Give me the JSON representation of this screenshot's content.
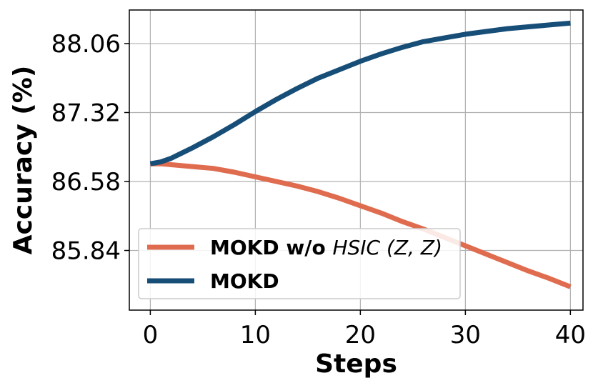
{
  "chart_data": {
    "type": "line",
    "xlabel": "Steps",
    "ylabel": "Accuracy (%)",
    "xlim": [
      -2,
      41.2
    ],
    "ylim": [
      85.2,
      88.42
    ],
    "xticks": [
      0,
      10,
      20,
      30,
      40
    ],
    "yticks": [
      85.84,
      86.58,
      87.32,
      88.06
    ],
    "ytick_labels": [
      "85.84",
      "86.58",
      "87.32",
      "88.06"
    ],
    "xtick_labels": [
      "0",
      "10",
      "20",
      "30",
      "40"
    ],
    "grid": true,
    "legend_position": "lower-left",
    "series": [
      {
        "legend_main": "MOKD w/o ",
        "legend_math": "HSIC",
        "legend_args": "(Z, Z)",
        "color": "#e06c4f",
        "x": [
          0,
          1,
          2,
          4,
          6,
          8,
          10,
          12,
          14,
          16,
          18,
          20,
          22,
          24,
          26,
          28,
          30,
          32,
          34,
          36,
          38,
          40
        ],
        "y": [
          86.77,
          86.77,
          86.76,
          86.74,
          86.72,
          86.68,
          86.63,
          86.58,
          86.53,
          86.47,
          86.4,
          86.32,
          86.24,
          86.15,
          86.07,
          85.98,
          85.89,
          85.8,
          85.71,
          85.62,
          85.54,
          85.45
        ]
      },
      {
        "legend_main": "MOKD",
        "color": "#174e78",
        "x": [
          0,
          1,
          2,
          4,
          6,
          8,
          10,
          12,
          14,
          16,
          18,
          20,
          22,
          24,
          26,
          28,
          30,
          32,
          34,
          36,
          38,
          40
        ],
        "y": [
          86.77,
          86.79,
          86.83,
          86.94,
          87.06,
          87.19,
          87.33,
          87.46,
          87.58,
          87.69,
          87.78,
          87.87,
          87.95,
          88.02,
          88.08,
          88.12,
          88.16,
          88.19,
          88.22,
          88.24,
          88.26,
          88.28
        ]
      }
    ]
  }
}
